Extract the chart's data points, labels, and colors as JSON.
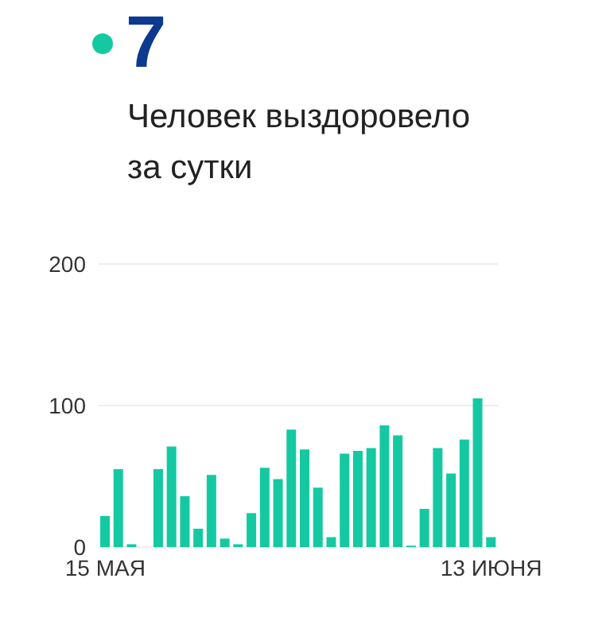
{
  "chart_data": {
    "type": "bar",
    "title": "7",
    "subtitle": "Человек выздоровело за сутки",
    "categories": [
      "15 МАЯ",
      null,
      null,
      null,
      null,
      null,
      null,
      null,
      null,
      null,
      null,
      null,
      null,
      null,
      null,
      null,
      null,
      null,
      null,
      null,
      null,
      null,
      null,
      null,
      null,
      null,
      null,
      null,
      null,
      "13 ИЮНЯ"
    ],
    "values": [
      22,
      55,
      2,
      0,
      55,
      71,
      36,
      13,
      51,
      6,
      2,
      24,
      56,
      48,
      83,
      69,
      42,
      7,
      66,
      68,
      70,
      86,
      79,
      1,
      27,
      70,
      52,
      76,
      105,
      7
    ],
    "color": "#14c9a2",
    "ylim": [
      0,
      200
    ],
    "yticks": [
      0,
      100,
      200
    ],
    "grid": "y"
  }
}
